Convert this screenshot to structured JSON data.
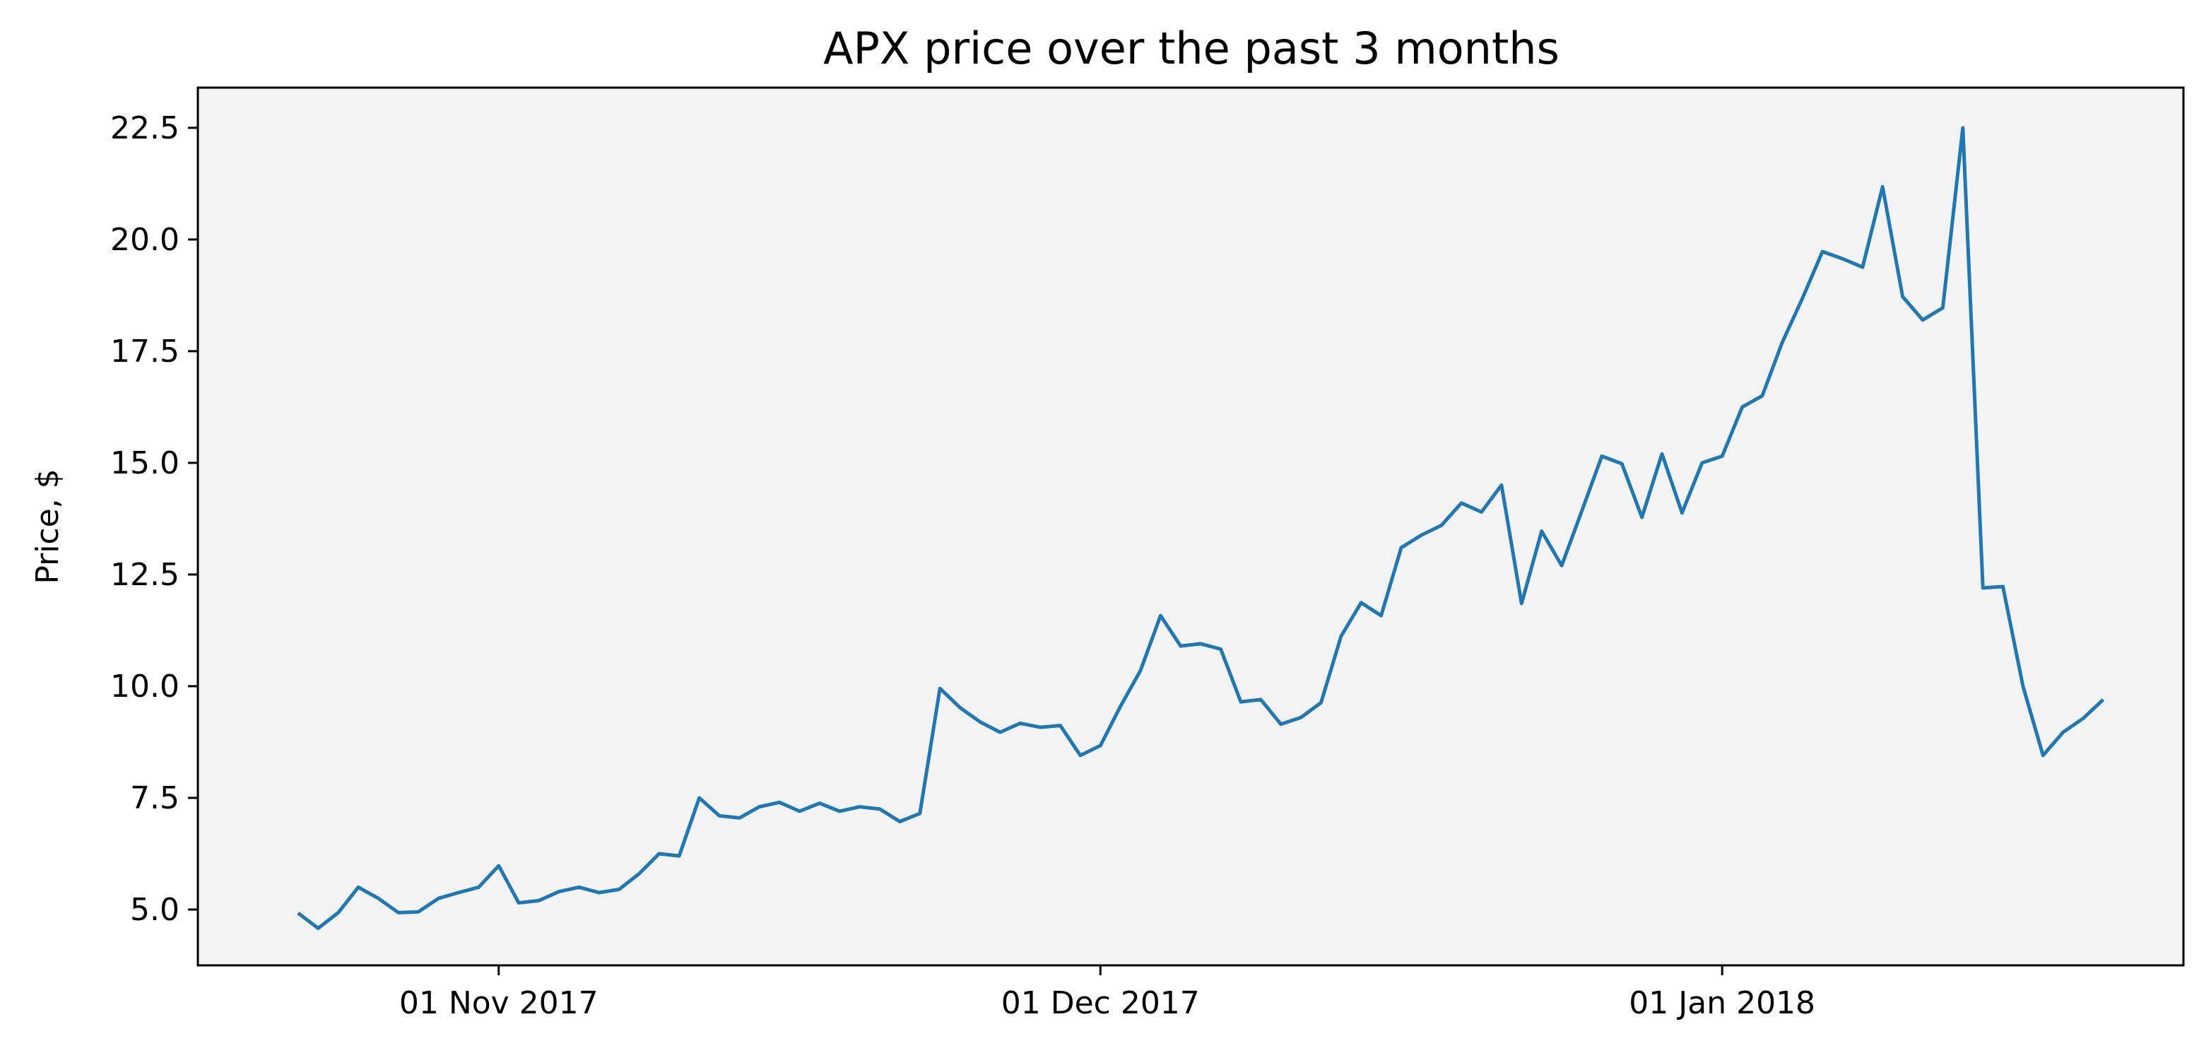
{
  "chart_data": {
    "type": "line",
    "title": "APX price over the past 3 months",
    "xlabel": "",
    "ylabel": "Price, $",
    "xlim": [
      "2017-10-17",
      "2018-01-24"
    ],
    "ylim": [
      3.75,
      23.4
    ],
    "grid": false,
    "legend": "none",
    "x_ticks": [
      {
        "date": "2017-11-01",
        "label": "01 Nov 2017"
      },
      {
        "date": "2017-12-01",
        "label": "01 Dec 2017"
      },
      {
        "date": "2018-01-01",
        "label": "01 Jan 2018"
      }
    ],
    "y_ticks": [
      {
        "value": 5.0,
        "label": "5.0"
      },
      {
        "value": 7.5,
        "label": "7.5"
      },
      {
        "value": 10.0,
        "label": "10.0"
      },
      {
        "value": 12.5,
        "label": "12.5"
      },
      {
        "value": 15.0,
        "label": "15.0"
      },
      {
        "value": 17.5,
        "label": "17.5"
      },
      {
        "value": 20.0,
        "label": "20.0"
      },
      {
        "value": 22.5,
        "label": "22.5"
      }
    ],
    "series": [
      {
        "color": "#1f77b4",
        "points": [
          [
            "2017-10-22",
            4.92
          ],
          [
            "2017-10-23",
            4.58
          ],
          [
            "2017-10-24",
            4.93
          ],
          [
            "2017-10-25",
            5.5
          ],
          [
            "2017-10-26",
            5.25
          ],
          [
            "2017-10-27",
            4.93
          ],
          [
            "2017-10-28",
            4.95
          ],
          [
            "2017-10-29",
            5.25
          ],
          [
            "2017-10-30",
            5.38
          ],
          [
            "2017-10-31",
            5.5
          ],
          [
            "2017-11-01",
            5.98
          ],
          [
            "2017-11-02",
            5.15
          ],
          [
            "2017-11-03",
            5.2
          ],
          [
            "2017-11-04",
            5.4
          ],
          [
            "2017-11-05",
            5.5
          ],
          [
            "2017-11-06",
            5.38
          ],
          [
            "2017-11-07",
            5.45
          ],
          [
            "2017-11-08",
            5.8
          ],
          [
            "2017-11-09",
            6.25
          ],
          [
            "2017-11-10",
            6.2
          ],
          [
            "2017-11-11",
            7.5
          ],
          [
            "2017-11-12",
            7.1
          ],
          [
            "2017-11-13",
            7.05
          ],
          [
            "2017-11-14",
            7.3
          ],
          [
            "2017-11-15",
            7.4
          ],
          [
            "2017-11-16",
            7.2
          ],
          [
            "2017-11-17",
            7.38
          ],
          [
            "2017-11-18",
            7.2
          ],
          [
            "2017-11-19",
            7.3
          ],
          [
            "2017-11-20",
            7.25
          ],
          [
            "2017-11-21",
            6.97
          ],
          [
            "2017-11-22",
            7.15
          ],
          [
            "2017-11-23",
            9.95
          ],
          [
            "2017-11-24",
            9.52
          ],
          [
            "2017-11-25",
            9.2
          ],
          [
            "2017-11-26",
            8.97
          ],
          [
            "2017-11-27",
            9.17
          ],
          [
            "2017-11-28",
            9.08
          ],
          [
            "2017-11-29",
            9.12
          ],
          [
            "2017-11-30",
            8.45
          ],
          [
            "2017-12-01",
            8.67
          ],
          [
            "2017-12-02",
            9.55
          ],
          [
            "2017-12-03",
            10.35
          ],
          [
            "2017-12-04",
            11.58
          ],
          [
            "2017-12-05",
            10.9
          ],
          [
            "2017-12-06",
            10.95
          ],
          [
            "2017-12-07",
            10.83
          ],
          [
            "2017-12-08",
            9.65
          ],
          [
            "2017-12-09",
            9.7
          ],
          [
            "2017-12-10",
            9.15
          ],
          [
            "2017-12-11",
            9.3
          ],
          [
            "2017-12-12",
            9.63
          ],
          [
            "2017-12-13",
            11.12
          ],
          [
            "2017-12-14",
            11.87
          ],
          [
            "2017-12-15",
            11.58
          ],
          [
            "2017-12-16",
            13.1
          ],
          [
            "2017-12-17",
            13.38
          ],
          [
            "2017-12-18",
            13.6
          ],
          [
            "2017-12-19",
            14.1
          ],
          [
            "2017-12-20",
            13.9
          ],
          [
            "2017-12-21",
            14.5
          ],
          [
            "2017-12-22",
            11.85
          ],
          [
            "2017-12-23",
            13.47
          ],
          [
            "2017-12-24",
            12.7
          ],
          [
            "2017-12-25",
            13.92
          ],
          [
            "2017-12-26",
            15.15
          ],
          [
            "2017-12-27",
            14.98
          ],
          [
            "2017-12-28",
            13.78
          ],
          [
            "2017-12-29",
            15.2
          ],
          [
            "2017-12-30",
            13.88
          ],
          [
            "2017-12-31",
            15.0
          ],
          [
            "2018-01-01",
            15.15
          ],
          [
            "2018-01-02",
            16.25
          ],
          [
            "2018-01-03",
            16.5
          ],
          [
            "2018-01-04",
            17.7
          ],
          [
            "2018-01-05",
            18.68
          ],
          [
            "2018-01-06",
            19.73
          ],
          [
            "2018-01-07",
            19.57
          ],
          [
            "2018-01-08",
            19.38
          ],
          [
            "2018-01-09",
            21.18
          ],
          [
            "2018-01-10",
            18.72
          ],
          [
            "2018-01-11",
            18.2
          ],
          [
            "2018-01-12",
            18.47
          ],
          [
            "2018-01-13",
            22.5
          ],
          [
            "2018-01-14",
            12.2
          ],
          [
            "2018-01-15",
            12.23
          ],
          [
            "2018-01-16",
            10.0
          ],
          [
            "2018-01-17",
            8.45
          ],
          [
            "2018-01-18",
            8.97
          ],
          [
            "2018-01-19",
            9.28
          ],
          [
            "2018-01-20",
            9.7
          ]
        ]
      }
    ]
  },
  "style": {
    "plot_background": "#f3f3f3",
    "axes_color": "#000000"
  }
}
